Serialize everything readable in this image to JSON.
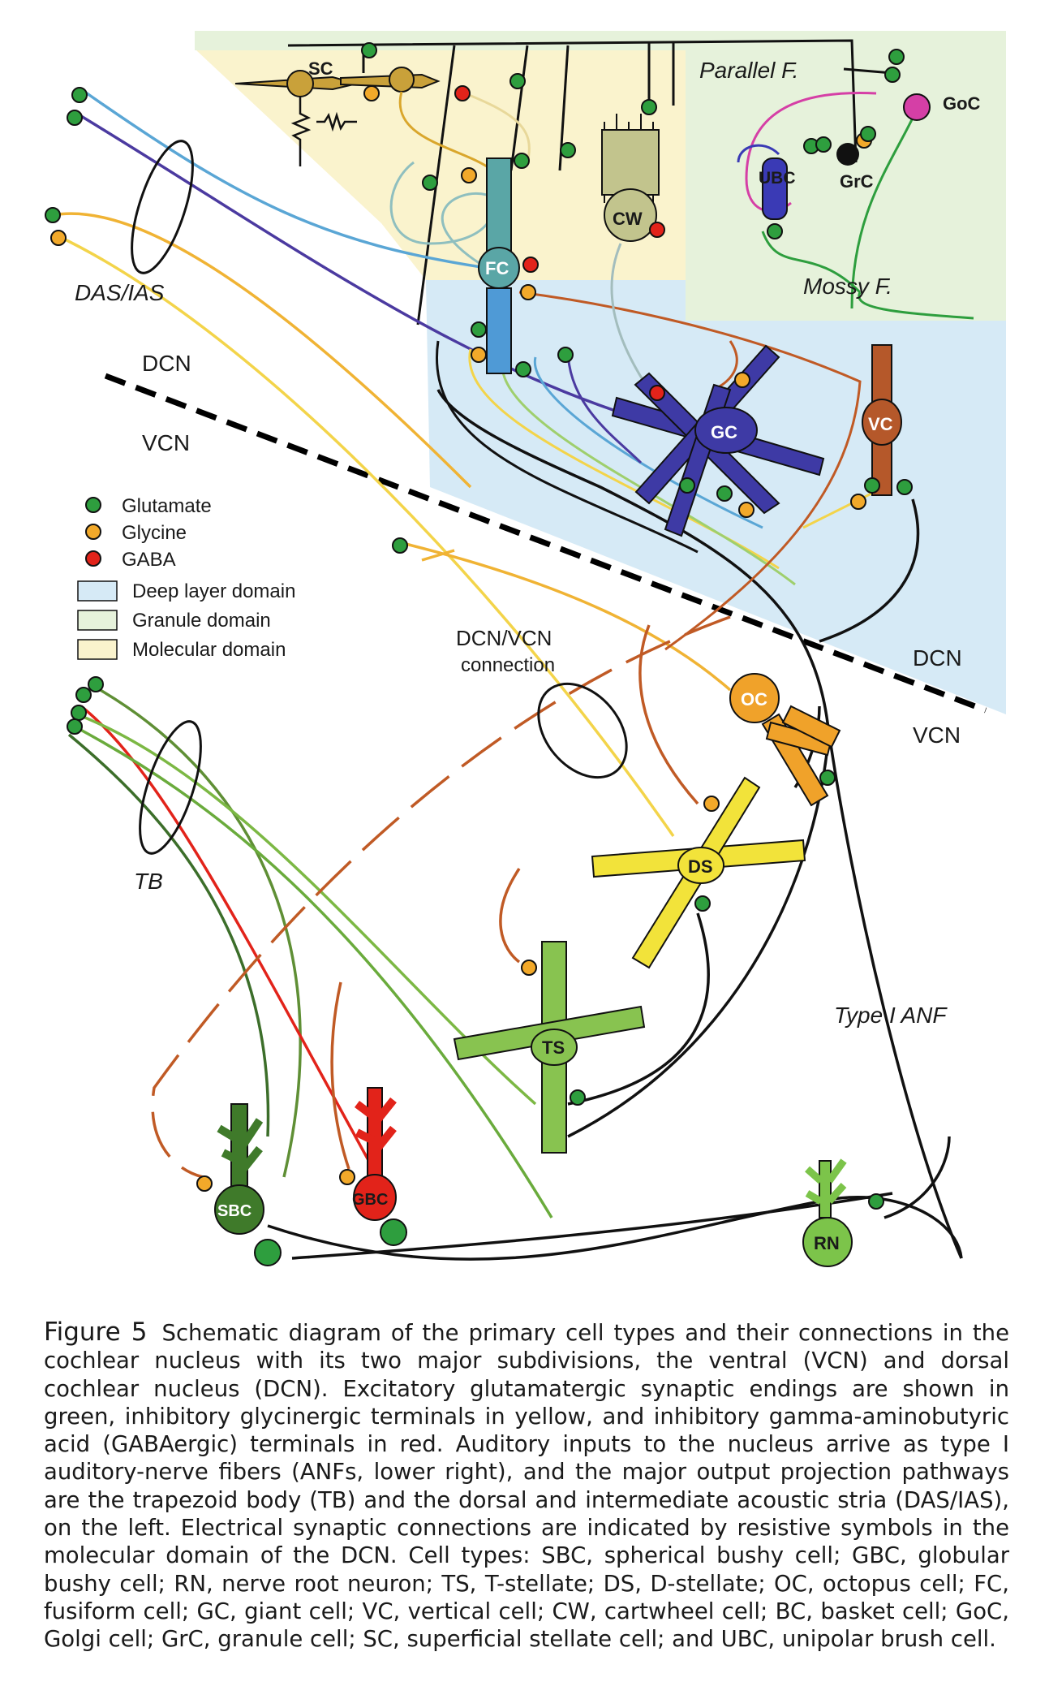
{
  "regions": {
    "dcn_label": "DCN",
    "vcn_label": "VCN",
    "dcn_label_2": "DCN",
    "vcn_label_2": "VCN",
    "parallel_fibers": "Parallel F.",
    "mossy_fibers": "Mossy F.",
    "das_ias": "DAS/IAS",
    "tb": "TB",
    "dcn_vcn_connection_line1": "DCN/VCN",
    "dcn_vcn_connection_line2": "connection",
    "type1_anf": "Type I ANF"
  },
  "legend": {
    "transmitters": [
      {
        "label": "Glutamate",
        "color": "#2e9e3e"
      },
      {
        "label": "Glycine",
        "color": "#f2a92a"
      },
      {
        "label": "GABA",
        "color": "#e2231a"
      }
    ],
    "domains": [
      {
        "label": "Deep layer domain",
        "color": "#d6eaf6"
      },
      {
        "label": "Granule domain",
        "color": "#e6f2db"
      },
      {
        "label": "Molecular domain",
        "color": "#faf3cd"
      }
    ]
  },
  "cells": {
    "sc": "SC",
    "fc": "FC",
    "cw": "CW",
    "ubc": "UBC",
    "grc": "GrC",
    "goc": "GoC",
    "gc": "GC",
    "vc": "VC",
    "oc": "OC",
    "ds": "DS",
    "ts": "TS",
    "sbc": "SBC",
    "gbc": "GBC",
    "rn": "RN"
  },
  "caption": {
    "figure_label": "Figure 5",
    "text": "Schematic diagram of the primary cell types and their connections in the cochlear nucleus with its two major subdivisions, the ventral (VCN) and dorsal cochlear nucleus (DCN). Excitatory glutamatergic synaptic endings are shown in green, inhibitory glycinergic terminals in yellow, and inhibitory gamma-aminobutyric acid (GABAergic) terminals in red. Auditory inputs to the nucleus arrive as type I auditory-nerve fibers (ANFs, lower right), and the major output projection pathways are the trapezoid body (TB) and the dorsal and intermediate acoustic stria (DAS/IAS), on the left. Electrical synaptic connections are indicated by resistive symbols in the molecular domain of the DCN. Cell types: SBC, spherical bushy cell; GBC, globular bushy cell; RN, nerve root neuron; TS, T-stellate; DS, D-stellate; OC, octopus cell; FC, fusiform cell; GC, giant cell; VC, vertical cell; CW, cartwheel cell; BC, basket cell; GoC, Golgi cell; GrC, granule cell; SC, superficial stellate cell; and UBC, unipolar brush cell."
  }
}
